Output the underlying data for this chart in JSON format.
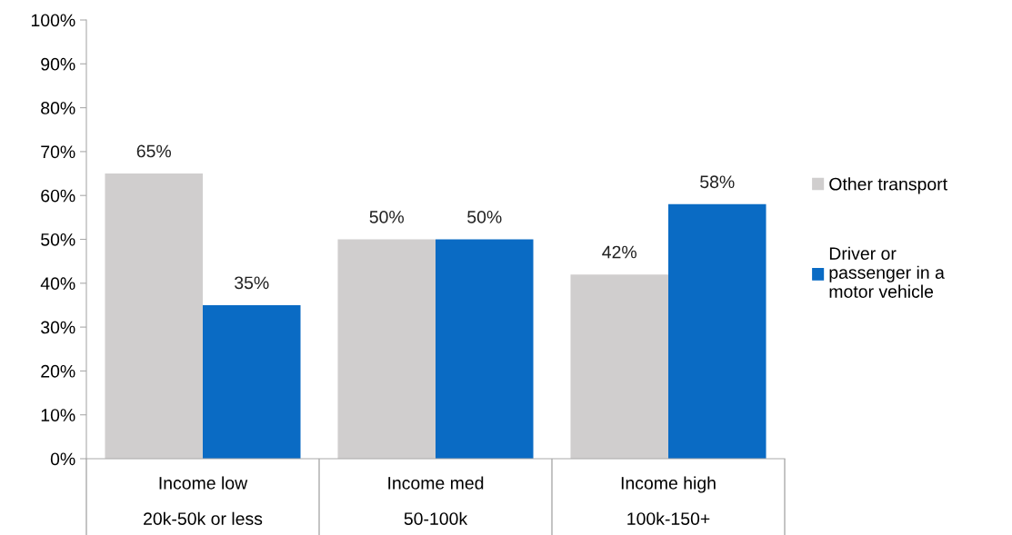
{
  "chart_data": {
    "type": "bar",
    "categories": [
      "Income low\n20k-50k or less",
      "Income med\n50-100k",
      "Income high\n100k-150+"
    ],
    "series": [
      {
        "name": "Other transport",
        "color": "#d0cece",
        "values": [
          65,
          50,
          42
        ],
        "value_labels": [
          "65%",
          "50%",
          "42%"
        ]
      },
      {
        "name": "Driver or\npassenger in a\nmotor vehicle",
        "color": "#0a6bc4",
        "values": [
          35,
          50,
          58
        ],
        "value_labels": [
          "35%",
          "50%",
          "58%"
        ]
      }
    ],
    "ylim": [
      0,
      100
    ],
    "yticks": [
      {
        "value": 0,
        "label": "0%"
      },
      {
        "value": 10,
        "label": "10%"
      },
      {
        "value": 20,
        "label": "20%"
      },
      {
        "value": 30,
        "label": "30%"
      },
      {
        "value": 40,
        "label": "40%"
      },
      {
        "value": 50,
        "label": "50%"
      },
      {
        "value": 60,
        "label": "60%"
      },
      {
        "value": 70,
        "label": "70%"
      },
      {
        "value": 80,
        "label": "80%"
      },
      {
        "value": 90,
        "label": "90%"
      },
      {
        "value": 100,
        "label": "100%"
      }
    ],
    "grid": false,
    "legend": "right"
  }
}
